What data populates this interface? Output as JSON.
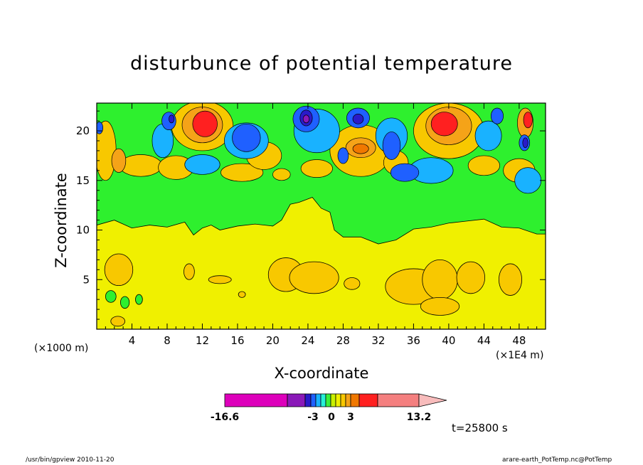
{
  "chart_data": {
    "type": "heatmap",
    "title": "disturbunce of potential temperature",
    "xlabel": "X-coordinate",
    "ylabel": "Z-coordinate",
    "x_unit_left": "(×1000 m)",
    "x_unit_right": "(×1E4 m)",
    "xticks": [
      4,
      8,
      12,
      16,
      20,
      24,
      28,
      32,
      36,
      40,
      44,
      48
    ],
    "yticks": [
      5,
      10,
      15,
      20
    ],
    "xlim": [
      0,
      51
    ],
    "ylim": [
      0,
      22.8
    ],
    "colorbar": {
      "min_label": "-16.6",
      "mid_labels": [
        "-3",
        "0",
        "3"
      ],
      "max_label": "13.2",
      "colors": [
        "#dd00bb",
        "#8a19b8",
        "#2a1ac9",
        "#1f60ff",
        "#19b2ff",
        "#27f0d7",
        "#3bf03b",
        "#c8f000",
        "#f0f000",
        "#f8c800",
        "#f5a318",
        "#f07800",
        "#ff2020",
        "#f47f7f",
        "#f8bcbc"
      ]
    },
    "regions": [
      {
        "level": "0",
        "color": "#f0f000",
        "z_range": [
          0,
          10
        ]
      },
      {
        "level": "-1",
        "color": "#2ef02e",
        "z_range": [
          10,
          16
        ]
      },
      {
        "level": "mixed",
        "color": "mixed",
        "z_range": [
          16,
          22.8
        ]
      }
    ]
  },
  "annotations": {
    "time": "t=25800 s",
    "footer_left": "/usr/bin/gpview   2010-11-20",
    "footer_right": "arare-earth_PotTemp.nc@PotTemp"
  }
}
